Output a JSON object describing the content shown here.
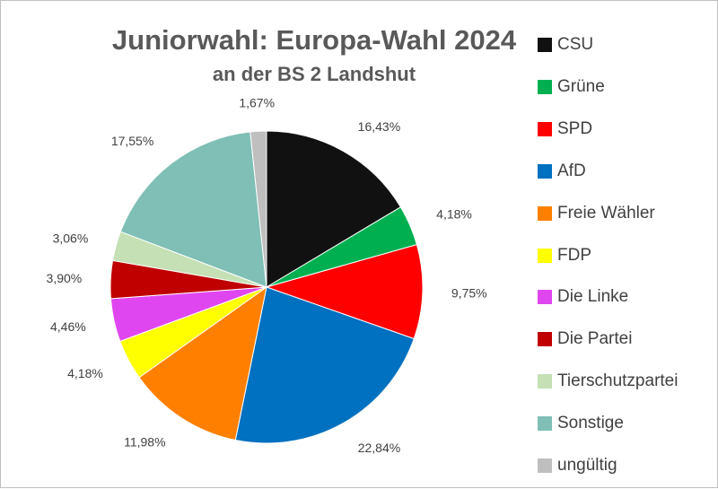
{
  "chart_data": {
    "type": "pie",
    "title": "Juniorwahl: Europa-Wahl 2024",
    "subtitle": "an der BS 2 Landshut",
    "start_angle": 0,
    "direction": "clockwise",
    "legend_position": "right",
    "slices": [
      {
        "label": "CSU",
        "value": 16.43,
        "value_label": "16,43%",
        "color": "#111111"
      },
      {
        "label": "Grüne",
        "value": 4.18,
        "value_label": "4,18%",
        "color": "#00b050"
      },
      {
        "label": "SPD",
        "value": 9.75,
        "value_label": "9,75%",
        "color": "#ff0000"
      },
      {
        "label": "AfD",
        "value": 22.84,
        "value_label": "22,84%",
        "color": "#0070c0"
      },
      {
        "label": "Freie Wähler",
        "value": 11.98,
        "value_label": "11,98%",
        "color": "#ff8000"
      },
      {
        "label": "FDP",
        "value": 4.18,
        "value_label": "4,18%",
        "color": "#ffff00"
      },
      {
        "label": "Die Linke",
        "value": 4.46,
        "value_label": "4,46%",
        "color": "#e046f0"
      },
      {
        "label": "Die Partei",
        "value": 3.9,
        "value_label": "3,90%",
        "color": "#c00000"
      },
      {
        "label": "Tierschutzpartei",
        "value": 3.06,
        "value_label": "3,06%",
        "color": "#c5e0b4"
      },
      {
        "label": "Sonstige",
        "value": 17.55,
        "value_label": "17,55%",
        "color": "#7fbfb5"
      },
      {
        "label": "ungültig",
        "value": 1.67,
        "value_label": "1,67%",
        "color": "#bfbfbf"
      }
    ]
  }
}
